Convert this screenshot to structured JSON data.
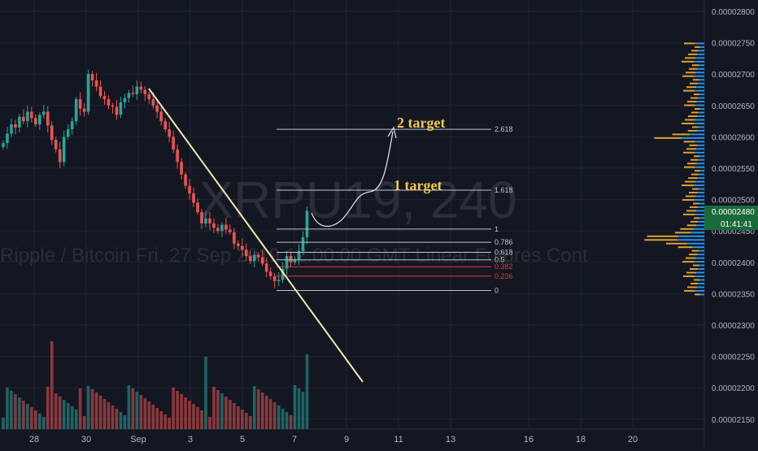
{
  "chart_data": {
    "type": "candlestick",
    "symbol": "XRPU19, 240",
    "subtitle": "Ripple / Bitcoin Fri, 27 Sep 2019 12:00:00 GMT Linear Futures Cont",
    "x_ticks": [
      "28",
      "30",
      "Sep",
      "3",
      "5",
      "7",
      "9",
      "11",
      "13",
      "16",
      "18",
      "20"
    ],
    "y_ticks": [
      "0.00002800",
      "0.00002750",
      "0.00002700",
      "0.00002650",
      "0.00002600",
      "0.00002550",
      "0.00002500",
      "0.00002450",
      "0.00002400",
      "0.00002350",
      "0.00002300",
      "0.00002250",
      "0.00002200",
      "0.00002150"
    ],
    "y_range": [
      2.14e-05,
      2.81e-05
    ],
    "last_price": "0.00002480",
    "countdown": "01:41:41",
    "fib_levels": [
      {
        "ratio": "2.618",
        "price": 2.612e-05
      },
      {
        "ratio": "1.618",
        "price": 2.515e-05
      },
      {
        "ratio": "1",
        "price": 2.453e-05
      },
      {
        "ratio": "0.786",
        "price": 2.432e-05
      },
      {
        "ratio": "0.618",
        "price": 2.416e-05
      },
      {
        "ratio": "0.5",
        "price": 2.404e-05
      },
      {
        "ratio": "0.382",
        "price": 2.393e-05
      },
      {
        "ratio": "0.236",
        "price": 2.378e-05
      },
      {
        "ratio": "0",
        "price": 2.355e-05
      }
    ],
    "annotations": [
      "1 target",
      "2 target"
    ],
    "colors": {
      "background": "#131722",
      "up": "#26a69a",
      "down": "#ef5350",
      "trendline": "#f3eab0",
      "target_text": "#f5c84c",
      "volume_profile_up": "#2196f3",
      "volume_profile_down": "#e0a030",
      "last_price_bg": "#1b6b3a",
      "grid": "#1f2433",
      "axis_text": "#b2b5be"
    }
  }
}
